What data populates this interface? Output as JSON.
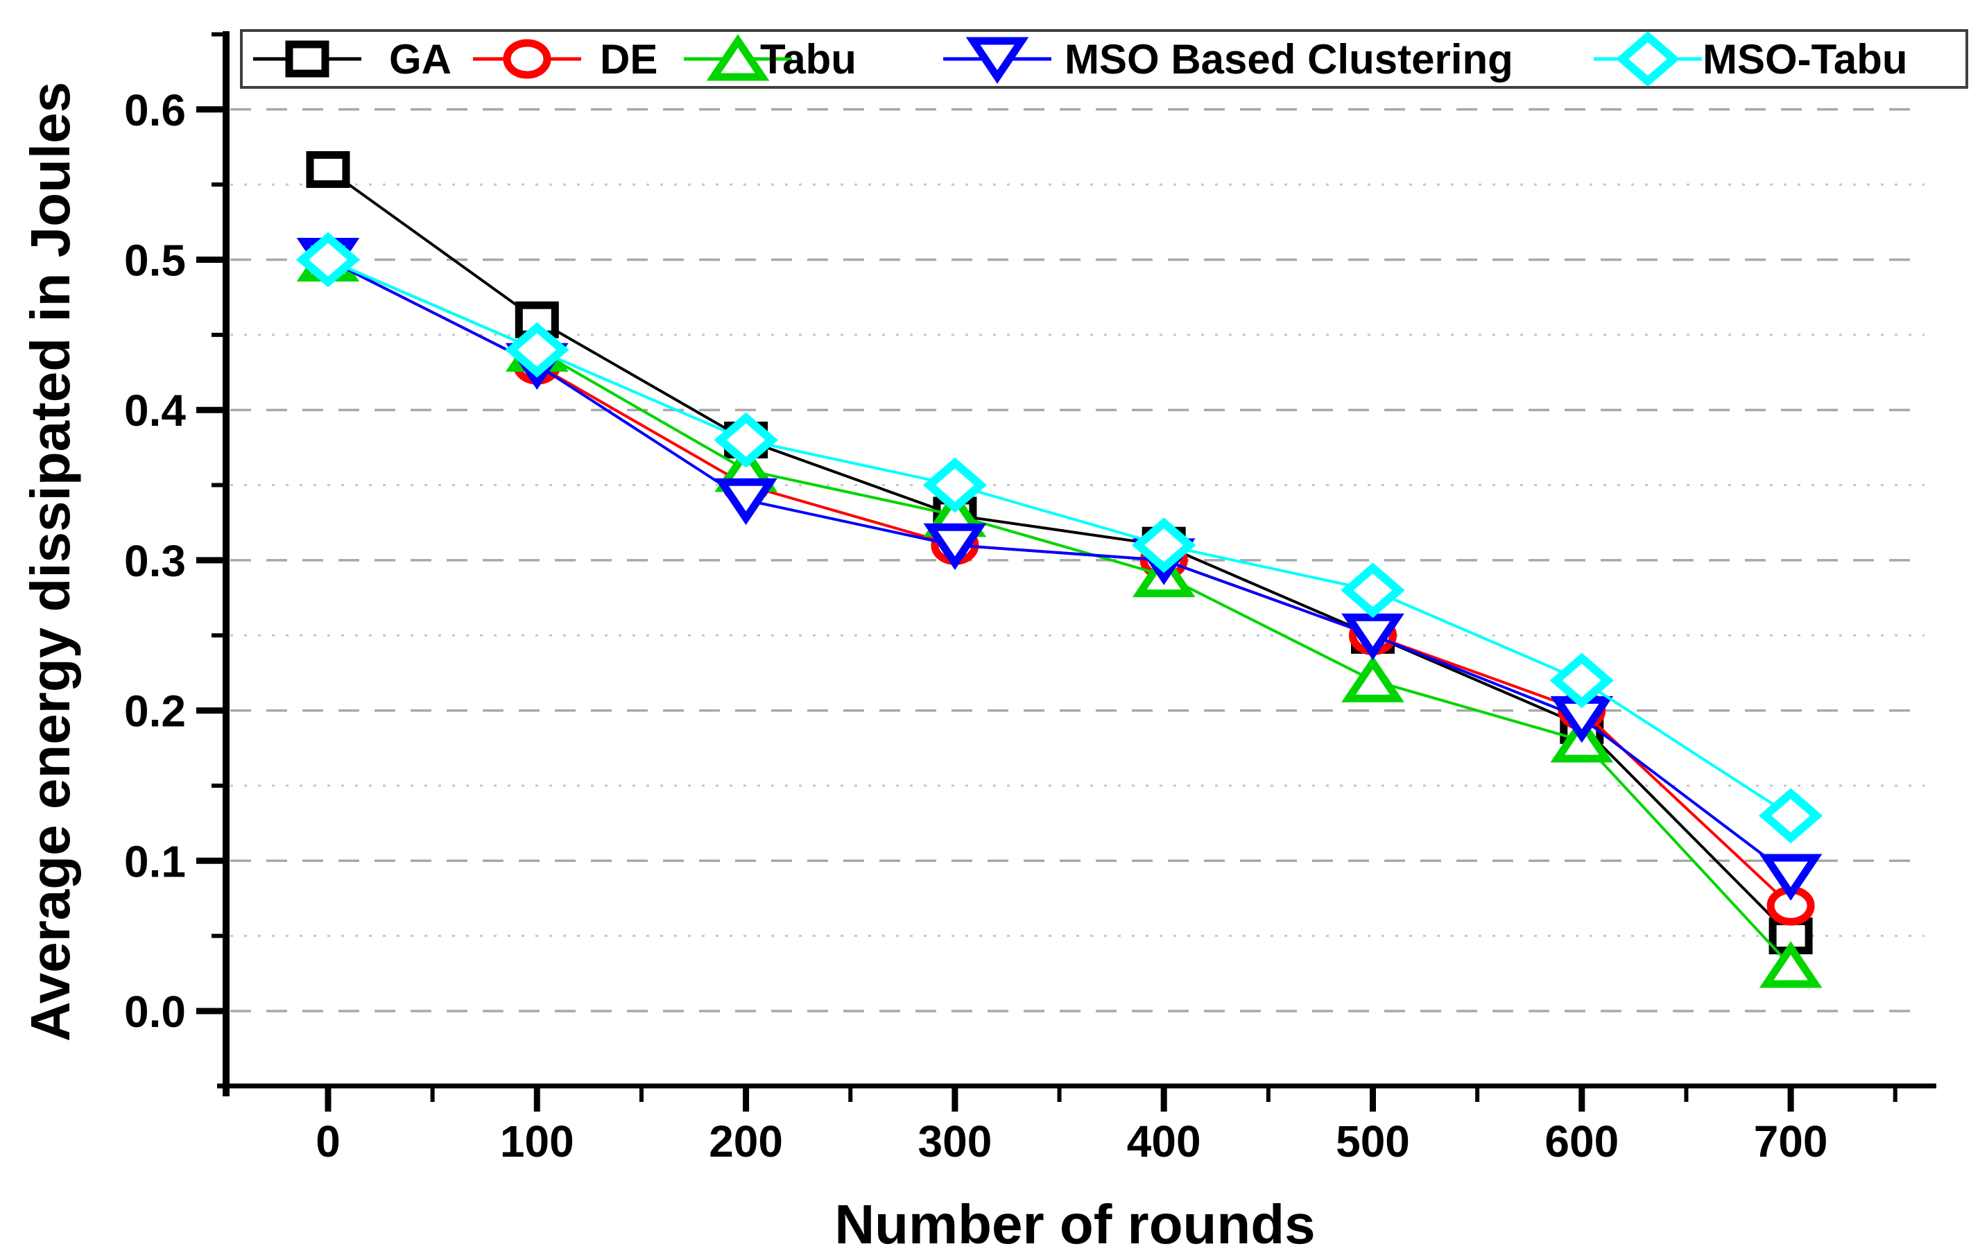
{
  "chart_data": {
    "type": "line",
    "title": "",
    "xlabel": "Number of rounds",
    "ylabel": "Average energy dissipated in Joules",
    "x": [
      0,
      100,
      200,
      300,
      400,
      500,
      600,
      700
    ],
    "xlim": [
      -50,
      765
    ],
    "ylim": [
      -0.05,
      0.65
    ],
    "x_major_ticks": [
      0,
      100,
      200,
      300,
      400,
      500,
      600,
      700
    ],
    "x_minor_ticks": [
      50,
      150,
      250,
      350,
      450,
      550,
      650,
      750
    ],
    "y_major_ticks": [
      0.0,
      0.1,
      0.2,
      0.3,
      0.4,
      0.5,
      0.6
    ],
    "y_major_tick_labels": [
      "0.0",
      "0.1",
      "0.2",
      "0.3",
      "0.4",
      "0.5",
      "0.6"
    ],
    "y_minor_ticks": [
      0.05,
      0.15,
      0.25,
      0.35,
      0.45,
      0.55,
      0.65
    ],
    "grid": {
      "horizontal_major": "dashed",
      "horizontal_minor": "dotted",
      "vertical": "none"
    },
    "legend_position": "top-inside-box",
    "series": [
      {
        "name": "GA",
        "color": "#000000",
        "marker": "square",
        "values": [
          0.56,
          0.46,
          0.38,
          0.33,
          0.31,
          0.25,
          0.19,
          0.05
        ]
      },
      {
        "name": "DE",
        "color": "#ff0000",
        "marker": "circle",
        "values": [
          0.5,
          0.43,
          0.35,
          0.31,
          0.3,
          0.25,
          0.2,
          0.07
        ]
      },
      {
        "name": "Tabu",
        "color": "#00d500",
        "marker": "triangle-up",
        "values": [
          0.5,
          0.44,
          0.36,
          0.33,
          0.29,
          0.22,
          0.18,
          0.03
        ]
      },
      {
        "name": "MSO Based Clustering",
        "color": "#0000ff",
        "marker": "triangle-down",
        "values": [
          0.5,
          0.43,
          0.34,
          0.31,
          0.3,
          0.25,
          0.195,
          0.09
        ]
      },
      {
        "name": "MSO-Tabu",
        "color": "#00ffff",
        "marker": "diamond",
        "values": [
          0.5,
          0.44,
          0.38,
          0.35,
          0.31,
          0.28,
          0.22,
          0.13
        ]
      }
    ],
    "colors": {
      "background": "#ffffff",
      "axis": "#000000",
      "major_grid": "#a8a8a8",
      "minor_grid": "#c6c6c6",
      "legend_border": "#404040",
      "marker_fill": "#ffffff"
    }
  }
}
